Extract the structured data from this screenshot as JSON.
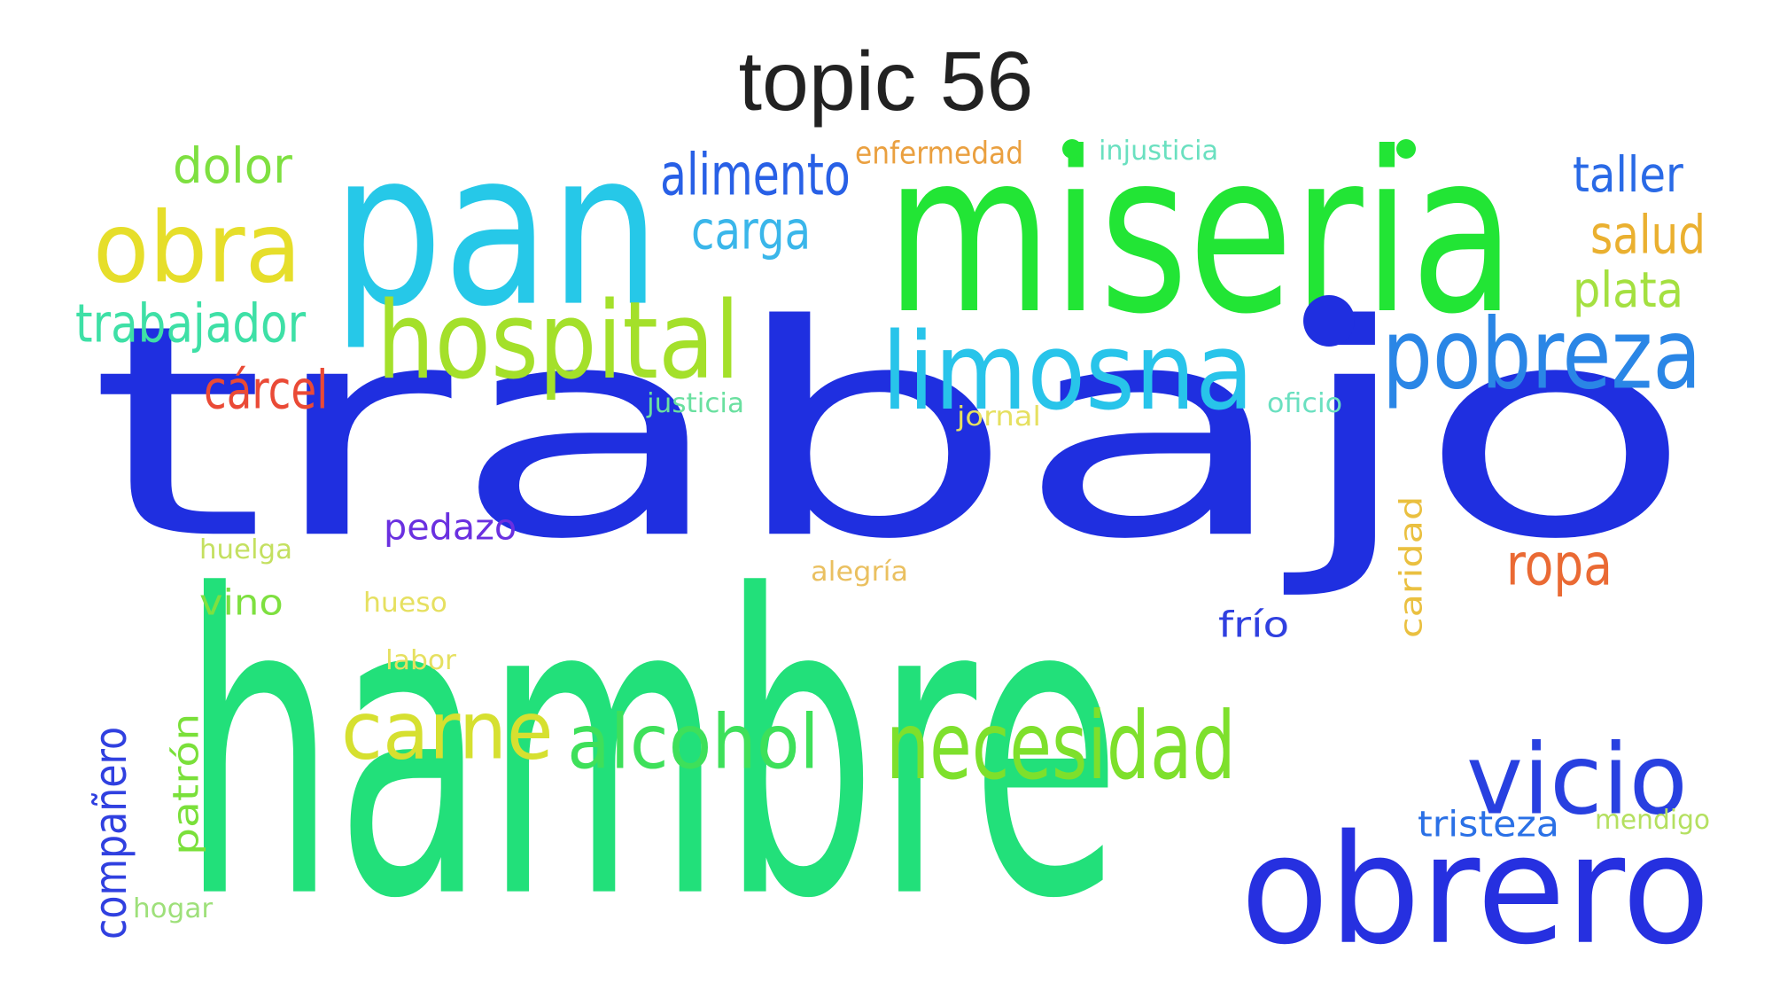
{
  "title": "topic 56",
  "words": [
    {
      "text": "trabajo",
      "color": "#1f2fe0"
    },
    {
      "text": "hambre",
      "color": "#22e07a"
    },
    {
      "text": "miseria",
      "color": "#22e535"
    },
    {
      "text": "pan",
      "color": "#26c8e8"
    },
    {
      "text": "obrero",
      "color": "#2630e0"
    },
    {
      "text": "limosna",
      "color": "#28c4ea"
    },
    {
      "text": "pobreza",
      "color": "#2a86e6"
    },
    {
      "text": "hospital",
      "color": "#a4e02a"
    },
    {
      "text": "obra",
      "color": "#e6de2a"
    },
    {
      "text": "necesidad",
      "color": "#7ee02c"
    },
    {
      "text": "alcohol",
      "color": "#3ee05a"
    },
    {
      "text": "carne",
      "color": "#d6e030"
    },
    {
      "text": "vicio",
      "color": "#2840e0"
    },
    {
      "text": "alimento",
      "color": "#2860e6"
    },
    {
      "text": "carga",
      "color": "#3ab6ea"
    },
    {
      "text": "dolor",
      "color": "#7ee040"
    },
    {
      "text": "trabajador",
      "color": "#3ee0a6"
    },
    {
      "text": "cárcel",
      "color": "#ea4a36"
    },
    {
      "text": "taller",
      "color": "#2a6ae6"
    },
    {
      "text": "salud",
      "color": "#eab030"
    },
    {
      "text": "plata",
      "color": "#a4e040"
    },
    {
      "text": "ropa",
      "color": "#ea6a34"
    },
    {
      "text": "pedazo",
      "color": "#6a30e0"
    },
    {
      "text": "compañero",
      "color": "#3040e0"
    },
    {
      "text": "patrón",
      "color": "#7ae03a"
    },
    {
      "text": "tristeza",
      "color": "#2a70e6"
    },
    {
      "text": "frío",
      "color": "#3040e0"
    },
    {
      "text": "caridad",
      "color": "#eac040"
    },
    {
      "text": "vino",
      "color": "#7ee040"
    },
    {
      "text": "enfermedad",
      "color": "#eaa040"
    },
    {
      "text": "injusticia",
      "color": "#6ae0c0"
    },
    {
      "text": "justicia",
      "color": "#6ae0a0"
    },
    {
      "text": "jornal",
      "color": "#e6e060"
    },
    {
      "text": "oficio",
      "color": "#6ae0c0"
    },
    {
      "text": "huelga",
      "color": "#c4e060"
    },
    {
      "text": "alegría",
      "color": "#eac060"
    },
    {
      "text": "hueso",
      "color": "#e6e060"
    },
    {
      "text": "labor",
      "color": "#e6e060"
    },
    {
      "text": "mendigo",
      "color": "#b4e060"
    },
    {
      "text": "hogar",
      "color": "#9ee07a"
    }
  ],
  "dots": [
    {
      "color": "#1f2fe0"
    },
    {
      "color": "#22e535"
    },
    {
      "color": "#22e535"
    }
  ]
}
